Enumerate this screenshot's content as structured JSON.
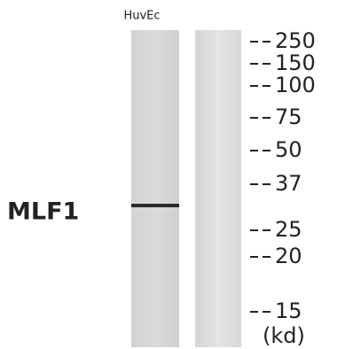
{
  "sample_label": "HuvEc",
  "protein_label": "MLF1",
  "markers": [
    "250",
    "150",
    "100",
    "75",
    "50",
    "37",
    "25",
    "20",
    "15"
  ],
  "unit_label": "(kd)"
}
